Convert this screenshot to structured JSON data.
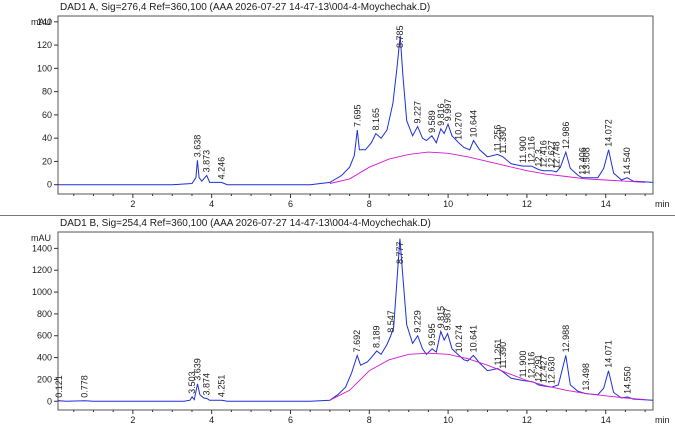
{
  "chart_data": [
    {
      "type": "line",
      "title": "DAD1 A, Sig=276,4 Ref=360,100 (AAA 2026-07-27 14-47-13\\004-4-Moychechak.D)",
      "ylabel": "mAU",
      "xlabel": "min",
      "xlim": [
        0.1,
        15.2
      ],
      "ylim": [
        -8,
        145
      ],
      "x_ticks": [
        2,
        4,
        6,
        8,
        10,
        12,
        14
      ],
      "y_ticks": [
        0,
        20,
        40,
        60,
        80,
        100,
        120,
        140
      ],
      "series": [
        {
          "color": "#1f2fd6",
          "points": [
            [
              0.1,
              0
            ],
            [
              3.0,
              0
            ],
            [
              3.5,
              1
            ],
            [
              3.6,
              6
            ],
            [
              3.638,
              21
            ],
            [
              3.68,
              6
            ],
            [
              3.75,
              3
            ],
            [
              3.873,
              8
            ],
            [
              3.95,
              2
            ],
            [
              4.246,
              2
            ],
            [
              4.4,
              0
            ],
            [
              6.5,
              0
            ],
            [
              7.0,
              2
            ],
            [
              7.3,
              8
            ],
            [
              7.5,
              15
            ],
            [
              7.62,
              25
            ],
            [
              7.695,
              47
            ],
            [
              7.75,
              30
            ],
            [
              7.9,
              30
            ],
            [
              8.05,
              36
            ],
            [
              8.165,
              44
            ],
            [
              8.3,
              40
            ],
            [
              8.45,
              47
            ],
            [
              8.6,
              70
            ],
            [
              8.7,
              100
            ],
            [
              8.785,
              128
            ],
            [
              8.85,
              95
            ],
            [
              8.95,
              55
            ],
            [
              9.1,
              42
            ],
            [
              9.227,
              50
            ],
            [
              9.35,
              40
            ],
            [
              9.45,
              38
            ],
            [
              9.589,
              42
            ],
            [
              9.7,
              36
            ],
            [
              9.816,
              48
            ],
            [
              9.9,
              44
            ],
            [
              9.997,
              52
            ],
            [
              10.1,
              42
            ],
            [
              10.27,
              36
            ],
            [
              10.4,
              32
            ],
            [
              10.55,
              30
            ],
            [
              10.644,
              38
            ],
            [
              10.8,
              30
            ],
            [
              11.0,
              24
            ],
            [
              11.256,
              26
            ],
            [
              11.39,
              24
            ],
            [
              11.6,
              18
            ],
            [
              11.9,
              16
            ],
            [
              12.116,
              16
            ],
            [
              12.3,
              13
            ],
            [
              12.416,
              12
            ],
            [
              12.627,
              12
            ],
            [
              12.748,
              11
            ],
            [
              12.85,
              15
            ],
            [
              12.986,
              28
            ],
            [
              13.1,
              14
            ],
            [
              13.3,
              8
            ],
            [
              13.406,
              6
            ],
            [
              13.508,
              6
            ],
            [
              13.8,
              6
            ],
            [
              13.95,
              14
            ],
            [
              14.072,
              30
            ],
            [
              14.2,
              10
            ],
            [
              14.4,
              4
            ],
            [
              14.54,
              6
            ],
            [
              14.7,
              3
            ],
            [
              15.2,
              2
            ]
          ]
        },
        {
          "color": "#d11ad1",
          "points": [
            [
              7.0,
              1
            ],
            [
              7.5,
              5
            ],
            [
              8.0,
              15
            ],
            [
              8.5,
              22
            ],
            [
              9.0,
              26
            ],
            [
              9.5,
              28
            ],
            [
              10.0,
              27
            ],
            [
              10.5,
              24
            ],
            [
              11.0,
              20
            ],
            [
              11.5,
              16
            ],
            [
              12.0,
              12
            ],
            [
              12.5,
              9
            ],
            [
              13.0,
              7
            ],
            [
              13.5,
              5
            ],
            [
              14.0,
              4
            ],
            [
              14.5,
              3
            ],
            [
              15.0,
              2
            ]
          ]
        }
      ],
      "peaks": [
        {
          "x": 3.638,
          "label": "3.638"
        },
        {
          "x": 3.873,
          "label": "3.873"
        },
        {
          "x": 4.246,
          "label": "4.246"
        },
        {
          "x": 7.695,
          "label": "7.695"
        },
        {
          "x": 8.165,
          "label": "8.165"
        },
        {
          "x": 8.785,
          "label": "8.785"
        },
        {
          "x": 9.227,
          "label": "9.227"
        },
        {
          "x": 9.589,
          "label": "9.589"
        },
        {
          "x": 9.816,
          "label": "9.816"
        },
        {
          "x": 9.997,
          "label": "9.997"
        },
        {
          "x": 10.27,
          "label": "10.270"
        },
        {
          "x": 10.644,
          "label": "10.644"
        },
        {
          "x": 11.256,
          "label": "11.256"
        },
        {
          "x": 11.39,
          "label": "11.390"
        },
        {
          "x": 11.9,
          "label": "11.900"
        },
        {
          "x": 12.116,
          "label": "12.116"
        },
        {
          "x": 12.3,
          "label": "12.3"
        },
        {
          "x": 12.416,
          "label": "12.416"
        },
        {
          "x": 12.627,
          "label": "12.627"
        },
        {
          "x": 12.748,
          "label": "12.748"
        },
        {
          "x": 12.986,
          "label": "12.986"
        },
        {
          "x": 13.406,
          "label": "13.406"
        },
        {
          "x": 13.508,
          "label": "13.508"
        },
        {
          "x": 14.072,
          "label": "14.072"
        },
        {
          "x": 14.54,
          "label": "14.540"
        }
      ]
    },
    {
      "type": "line",
      "title": "DAD1 B, Sig=254,4 Ref=360,100 (AAA 2026-07-27 14-47-13\\004-4-Moychechak.D)",
      "ylabel": "mAU",
      "xlabel": "min",
      "xlim": [
        0.1,
        15.2
      ],
      "ylim": [
        -80,
        1550
      ],
      "x_ticks": [
        2,
        4,
        6,
        8,
        10,
        12,
        14
      ],
      "y_ticks": [
        0,
        200,
        400,
        600,
        800,
        1000,
        1200,
        1400
      ],
      "series": [
        {
          "color": "#1f2fd6",
          "points": [
            [
              0.1,
              0
            ],
            [
              0.121,
              5
            ],
            [
              0.3,
              0
            ],
            [
              0.778,
              5
            ],
            [
              1.0,
              0
            ],
            [
              3.3,
              0
            ],
            [
              3.45,
              10
            ],
            [
              3.503,
              40
            ],
            [
              3.56,
              15
            ],
            [
              3.639,
              160
            ],
            [
              3.7,
              60
            ],
            [
              3.8,
              30
            ],
            [
              3.874,
              25
            ],
            [
              3.95,
              10
            ],
            [
              4.251,
              10
            ],
            [
              4.4,
              0
            ],
            [
              6.5,
              0
            ],
            [
              7.0,
              10
            ],
            [
              7.2,
              60
            ],
            [
              7.4,
              130
            ],
            [
              7.55,
              260
            ],
            [
              7.692,
              420
            ],
            [
              7.78,
              330
            ],
            [
              7.95,
              360
            ],
            [
              8.05,
              400
            ],
            [
              8.189,
              460
            ],
            [
              8.3,
              430
            ],
            [
              8.45,
              520
            ],
            [
              8.547,
              600
            ],
            [
              8.62,
              680
            ],
            [
              8.7,
              1100
            ],
            [
              8.777,
              1490
            ],
            [
              8.85,
              1150
            ],
            [
              8.95,
              700
            ],
            [
              9.1,
              530
            ],
            [
              9.229,
              600
            ],
            [
              9.35,
              480
            ],
            [
              9.45,
              430
            ],
            [
              9.595,
              480
            ],
            [
              9.7,
              450
            ],
            [
              9.815,
              640
            ],
            [
              9.9,
              560
            ],
            [
              9.987,
              620
            ],
            [
              10.1,
              480
            ],
            [
              10.274,
              420
            ],
            [
              10.4,
              380
            ],
            [
              10.5,
              370
            ],
            [
              10.641,
              420
            ],
            [
              10.8,
              350
            ],
            [
              11.0,
              280
            ],
            [
              11.261,
              300
            ],
            [
              11.39,
              270
            ],
            [
              11.6,
              210
            ],
            [
              11.9,
              190
            ],
            [
              12.116,
              180
            ],
            [
              12.2,
              170
            ],
            [
              12.291,
              150
            ],
            [
              12.427,
              140
            ],
            [
              12.63,
              130
            ],
            [
              12.8,
              150
            ],
            [
              12.988,
              420
            ],
            [
              13.1,
              150
            ],
            [
              13.3,
              90
            ],
            [
              13.498,
              70
            ],
            [
              13.8,
              60
            ],
            [
              13.95,
              120
            ],
            [
              14.071,
              280
            ],
            [
              14.2,
              80
            ],
            [
              14.4,
              30
            ],
            [
              14.55,
              40
            ],
            [
              14.7,
              20
            ],
            [
              15.2,
              10
            ]
          ]
        },
        {
          "color": "#d11ad1",
          "points": [
            [
              7.0,
              10
            ],
            [
              7.5,
              100
            ],
            [
              8.0,
              280
            ],
            [
              8.5,
              380
            ],
            [
              9.0,
              430
            ],
            [
              9.5,
              440
            ],
            [
              10.0,
              430
            ],
            [
              10.5,
              390
            ],
            [
              11.0,
              330
            ],
            [
              11.5,
              260
            ],
            [
              12.0,
              190
            ],
            [
              12.5,
              140
            ],
            [
              13.0,
              100
            ],
            [
              13.5,
              70
            ],
            [
              14.0,
              50
            ],
            [
              14.5,
              30
            ],
            [
              15.0,
              15
            ]
          ]
        }
      ],
      "peaks": [
        {
          "x": 0.121,
          "label": "0.121"
        },
        {
          "x": 0.778,
          "label": "0.778"
        },
        {
          "x": 3.503,
          "label": "3.503"
        },
        {
          "x": 3.639,
          "label": "3.639"
        },
        {
          "x": 3.874,
          "label": "3.874"
        },
        {
          "x": 4.251,
          "label": "4.251"
        },
        {
          "x": 7.692,
          "label": "7.692"
        },
        {
          "x": 8.189,
          "label": "8.189"
        },
        {
          "x": 8.547,
          "label": "8.547"
        },
        {
          "x": 8.777,
          "label": "8.777"
        },
        {
          "x": 9.229,
          "label": "9.229"
        },
        {
          "x": 9.595,
          "label": "9.595"
        },
        {
          "x": 9.815,
          "label": "9.815"
        },
        {
          "x": 9.987,
          "label": "9.987"
        },
        {
          "x": 10.274,
          "label": "10.274"
        },
        {
          "x": 10.641,
          "label": "10.641"
        },
        {
          "x": 11.261,
          "label": "11.261"
        },
        {
          "x": 11.39,
          "label": "11.390"
        },
        {
          "x": 11.9,
          "label": "11.900"
        },
        {
          "x": 12.116,
          "label": "12.116"
        },
        {
          "x": 12.291,
          "label": "12.291"
        },
        {
          "x": 12.427,
          "label": "12.427"
        },
        {
          "x": 12.63,
          "label": "12.630"
        },
        {
          "x": 12.988,
          "label": "12.988"
        },
        {
          "x": 13.498,
          "label": "13.498"
        },
        {
          "x": 14.071,
          "label": "14.071"
        },
        {
          "x": 14.55,
          "label": "14.550"
        }
      ]
    }
  ]
}
